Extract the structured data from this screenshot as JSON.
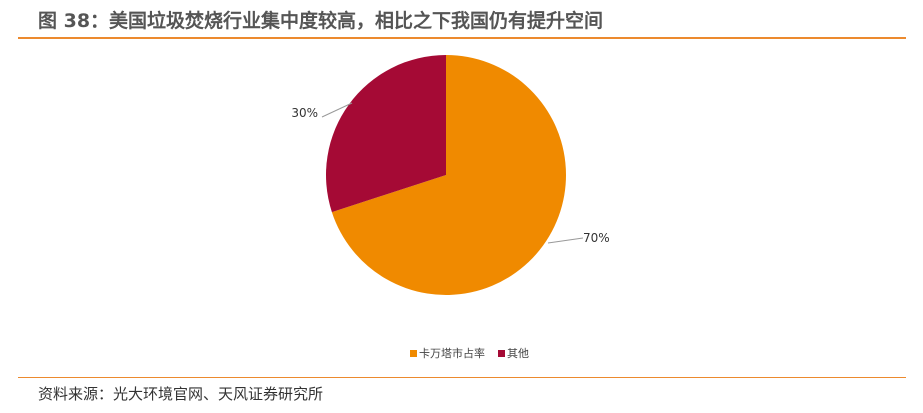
{
  "title": "图 38：美国垃圾焚烧行业集中度较高，相比之下我国仍有提升空间",
  "source": "资料来源：光大环境官网、天风证券研究所",
  "chart_data": {
    "type": "pie",
    "categories": [
      "卡万塔市占率",
      "其他"
    ],
    "values": [
      70,
      30
    ],
    "labels": [
      "70%",
      "30%"
    ],
    "colors": [
      "#f08a00",
      "#a50a35"
    ],
    "legend_placement": "bottom"
  }
}
